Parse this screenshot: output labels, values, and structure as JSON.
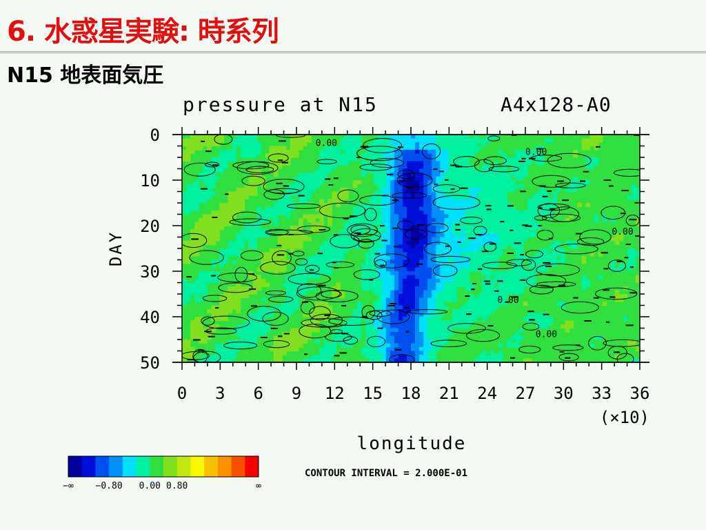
{
  "slide": {
    "title": "6. 水惑星実験: 時系列",
    "subtitle": "N15 地表面気圧"
  },
  "chart_data": {
    "type": "heatmap",
    "title": "pressure at N15",
    "run_label": "A4x128-A0",
    "xlabel": "longitude",
    "x_scale_label": "(×10)",
    "ylabel": "DAY",
    "xlim": [
      0,
      36
    ],
    "ylim": [
      50,
      0
    ],
    "x_ticks": [
      0,
      3,
      6,
      9,
      12,
      15,
      18,
      21,
      24,
      27,
      30,
      33,
      36
    ],
    "y_ticks": [
      0,
      10,
      20,
      30,
      40,
      50
    ],
    "contour_interval_label": "CONTOUR INTERVAL = 2.000E-01",
    "colorbar": {
      "colors": [
        "#0000a0",
        "#0010d8",
        "#0050f0",
        "#0090f8",
        "#00e0f8",
        "#00f0a0",
        "#30e040",
        "#80e020",
        "#c0e810",
        "#f8f800",
        "#f8c000",
        "#f89000",
        "#f85000",
        "#f80000"
      ],
      "tick_labels": [
        "−∞",
        "−0.80",
        "0.00",
        "0.80",
        "∞"
      ]
    },
    "low_pressure_core": {
      "description": "longitude band where values are strongly negative",
      "x_center_by_day": [
        {
          "day": 0,
          "lon": 18.5
        },
        {
          "day": 10,
          "lon": 18.0
        },
        {
          "day": 20,
          "lon": 18.2
        },
        {
          "day": 30,
          "lon": 18.0
        },
        {
          "day": 40,
          "lon": 17.5
        },
        {
          "day": 50,
          "lon": 17.3
        }
      ]
    },
    "contour_labels": [
      {
        "text": "0.00",
        "lon": 10.5,
        "day": 2.5
      },
      {
        "text": "0.00",
        "lon": 27.0,
        "day": 4.5
      },
      {
        "text": "0.00",
        "lon": 33.8,
        "day": 22.0
      },
      {
        "text": "0.00",
        "lon": 24.8,
        "day": 37.0
      },
      {
        "text": "0.00",
        "lon": 27.8,
        "day": 44.5
      }
    ]
  }
}
